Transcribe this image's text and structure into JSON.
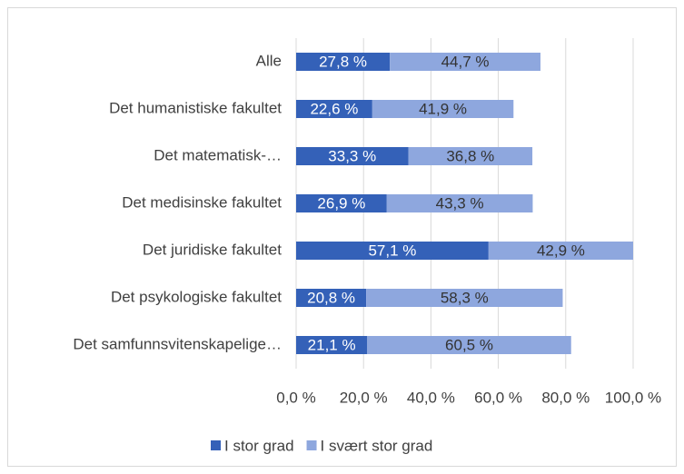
{
  "chart_data": {
    "type": "stacked-bar-horizontal",
    "categories": [
      "Alle",
      "Det humanistiske fakultet",
      "Det matematisk-…",
      "Det medisinske fakultet",
      "Det juridiske fakultet",
      "Det psykologiske fakultet",
      "Det samfunnsvitenskapelige…"
    ],
    "series": [
      {
        "name": "I stor grad",
        "color": "#3461b8",
        "values": [
          27.8,
          22.6,
          33.3,
          26.9,
          57.1,
          20.8,
          21.1
        ],
        "value_labels": [
          "27,8 %",
          "22,6 %",
          "33,3 %",
          "26,9 %",
          "57,1 %",
          "20,8 %",
          "21,1 %"
        ]
      },
      {
        "name": "I svært stor grad",
        "color": "#8ea7de",
        "values": [
          44.7,
          41.9,
          36.8,
          43.3,
          42.9,
          58.3,
          60.5
        ],
        "value_labels": [
          "44,7 %",
          "41,9 %",
          "36,8 %",
          "43,3 %",
          "42,9 %",
          "58,3 %",
          "60,5 %"
        ]
      }
    ],
    "xlim": [
      0,
      100
    ],
    "xticks": [
      {
        "value": 0,
        "label": "0,0 %"
      },
      {
        "value": 20,
        "label": "20,0 %"
      },
      {
        "value": 40,
        "label": "40,0 %"
      },
      {
        "value": 60,
        "label": "60,0 %"
      },
      {
        "value": 80,
        "label": "80,0 %"
      },
      {
        "value": 100,
        "label": "100,0 %"
      }
    ],
    "grid": true,
    "legend": "bottom"
  }
}
